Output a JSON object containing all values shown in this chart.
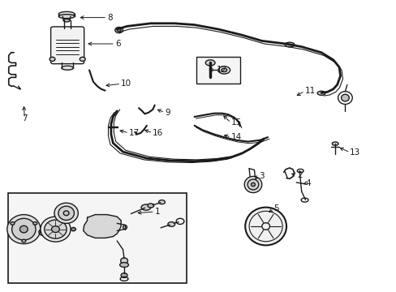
{
  "bg_color": "#ffffff",
  "fig_width": 4.89,
  "fig_height": 3.6,
  "dpi": 100,
  "line_color": "#1a1a1a",
  "label_fontsize": 7.5,
  "lw": 1.0,
  "labels": {
    "8": [
      0.255,
      0.938,
      0.205,
      0.938
    ],
    "6": [
      0.275,
      0.84,
      0.22,
      0.84
    ],
    "7": [
      0.062,
      0.6,
      0.065,
      0.645
    ],
    "10": [
      0.295,
      0.715,
      0.245,
      0.71
    ],
    "9": [
      0.395,
      0.61,
      0.375,
      0.63
    ],
    "16": [
      0.37,
      0.545,
      0.355,
      0.57
    ],
    "17": [
      0.31,
      0.54,
      0.285,
      0.548
    ],
    "15": [
      0.57,
      0.57,
      0.555,
      0.595
    ],
    "14": [
      0.57,
      0.51,
      0.555,
      0.535
    ],
    "12": [
      0.53,
      0.75,
      0.52,
      0.78
    ],
    "11": [
      0.76,
      0.68,
      0.735,
      0.66
    ],
    "13": [
      0.875,
      0.47,
      0.84,
      0.49
    ],
    "1": [
      0.38,
      0.27,
      0.33,
      0.285
    ],
    "2": [
      0.735,
      0.39,
      0.71,
      0.375
    ],
    "3": [
      0.645,
      0.39,
      0.635,
      0.375
    ],
    "4": [
      0.76,
      0.365,
      0.745,
      0.36
    ],
    "5": [
      0.68,
      0.28,
      0.665,
      0.265
    ]
  }
}
